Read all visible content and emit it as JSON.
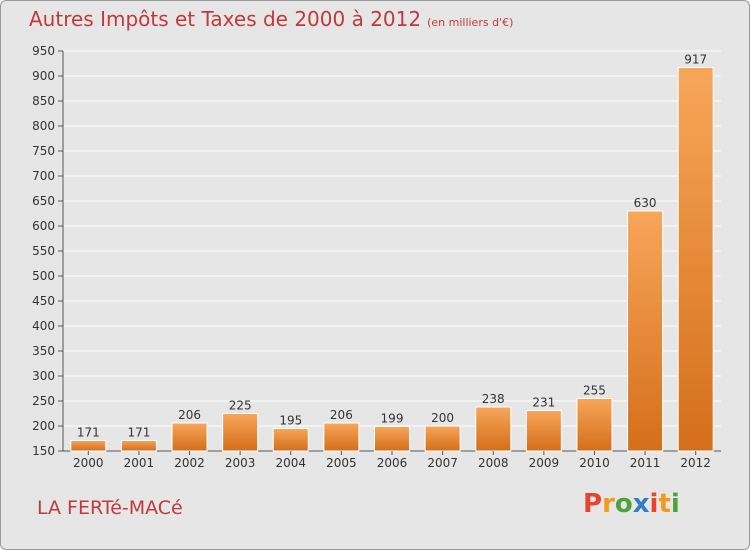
{
  "chart_data": {
    "type": "bar",
    "title": "Autres Impôts et Taxes de 2000 à 2012",
    "subtitle": "(en milliers d'€)",
    "categories": [
      "2000",
      "2001",
      "2002",
      "2003",
      "2004",
      "2005",
      "2006",
      "2007",
      "2008",
      "2009",
      "2010",
      "2011",
      "2012"
    ],
    "values": [
      171,
      171,
      206,
      225,
      195,
      206,
      199,
      200,
      238,
      231,
      255,
      630,
      917
    ],
    "ylim": [
      150,
      950
    ],
    "yticks": [
      150,
      200,
      250,
      300,
      350,
      400,
      450,
      500,
      550,
      600,
      650,
      700,
      750,
      800,
      850,
      900,
      950
    ],
    "grid": true,
    "bar_color": "#f0923a"
  },
  "footer": {
    "place_name": "LA FERTé-MACé",
    "logo_text": "Proxiti",
    "logo_colors": [
      "#e8452f",
      "#f29a1c",
      "#4aa43c",
      "#2f7fc1",
      "#e8452f",
      "#f29a1c",
      "#4aa43c"
    ]
  }
}
